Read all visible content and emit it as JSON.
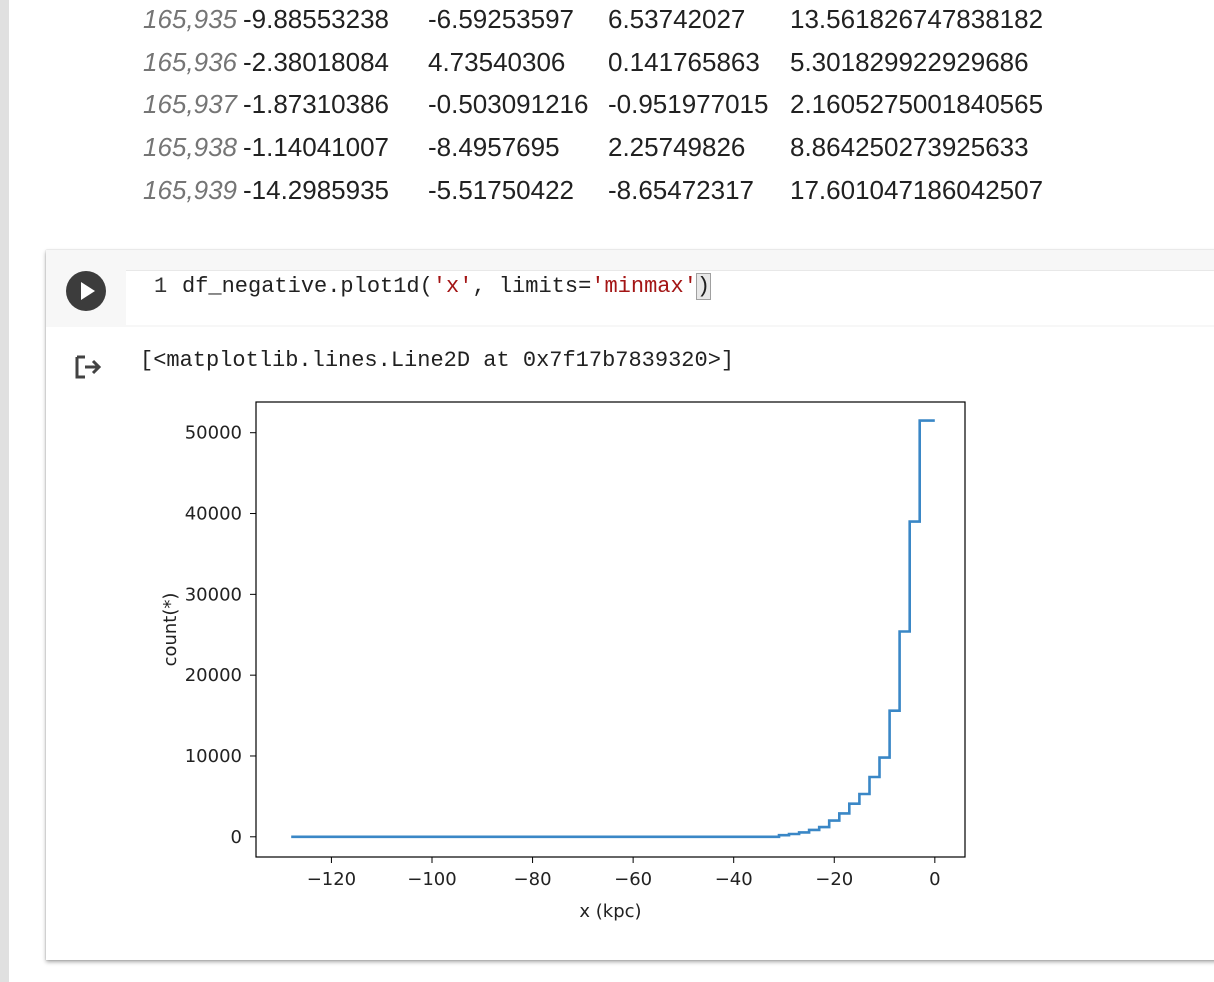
{
  "dataframe": {
    "rows": [
      {
        "index": "165,935",
        "values": [
          "-9.88553238",
          "-6.59253597",
          "6.53742027",
          "13.561826747838182"
        ]
      },
      {
        "index": "165,936",
        "values": [
          "-2.38018084",
          "4.73540306",
          "0.141765863",
          "5.301829922929686"
        ]
      },
      {
        "index": "165,937",
        "values": [
          "-1.87310386",
          "-0.503091216",
          "-0.951977015",
          "2.1605275001840565"
        ]
      },
      {
        "index": "165,938",
        "values": [
          "-1.14041007",
          "-8.4957695",
          "2.25749826",
          "8.864250273925633"
        ]
      },
      {
        "index": "165,939",
        "values": [
          "-14.2985935",
          "-5.51750422",
          "-8.65472317",
          "17.601047186042507"
        ]
      }
    ]
  },
  "cell": {
    "line_number": "1",
    "code_prefix": "df_negative.plot1d(",
    "code_arg1": "'x'",
    "code_sep": ", limits=",
    "code_arg2": "'minmax'",
    "code_close": ")",
    "output_text": "[<matplotlib.lines.Line2D at 0x7f17b7839320>]",
    "run_icon": "play-icon",
    "output_icon": "output-arrow-icon"
  },
  "chart_data": {
    "type": "line",
    "step": true,
    "xlabel": "x (kpc)",
    "ylabel": "count(*)",
    "xlim": [
      -135,
      6
    ],
    "ylim": [
      -2500,
      53800
    ],
    "xticks": [
      -120,
      -100,
      -80,
      -60,
      -40,
      -20,
      0
    ],
    "yticks": [
      0,
      10000,
      20000,
      30000,
      40000,
      50000
    ],
    "line_color": "#3a87c6",
    "x": [
      -128,
      -31,
      -31,
      -29,
      -29,
      -27,
      -27,
      -25,
      -25,
      -23,
      -23,
      -21,
      -21,
      -19,
      -19,
      -17,
      -17,
      -15,
      -15,
      -13,
      -13,
      -11,
      -11,
      -9,
      -9,
      -7,
      -7,
      -5,
      -5,
      -3,
      -3,
      -1,
      -1,
      0
    ],
    "y": [
      0,
      0,
      200,
      200,
      350,
      350,
      550,
      550,
      850,
      850,
      1200,
      1200,
      2000,
      2000,
      2900,
      2900,
      4100,
      4100,
      5300,
      5300,
      7400,
      7400,
      9800,
      9800,
      15600,
      15600,
      25400,
      25400,
      39000,
      39000,
      51500,
      51500,
      51500,
      51500
    ]
  }
}
